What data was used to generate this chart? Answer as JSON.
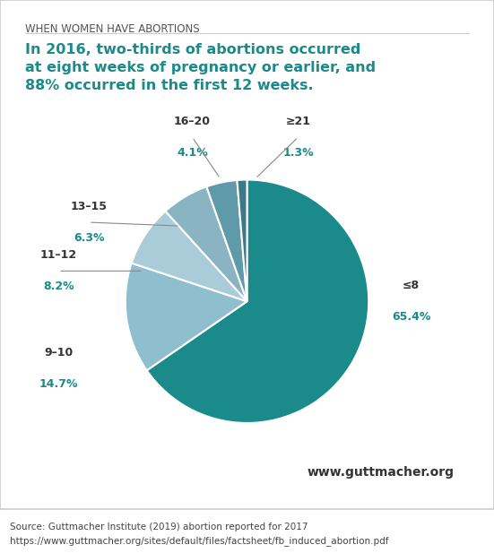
{
  "title_small": "WHEN WOMEN HAVE ABORTIONS",
  "title_main": "In 2016, two-thirds of abortions occurred\nat eight weeks of pregnancy or earlier, and\n88% occurred in the first 12 weeks.",
  "slices": [
    {
      "label": "≤8",
      "pct": 65.4,
      "color": "#1a8a8a"
    },
    {
      "label": "9–10",
      "pct": 14.7,
      "color": "#8fbfcf"
    },
    {
      "label": "11–12",
      "pct": 8.2,
      "color": "#aaccd8"
    },
    {
      "label": "13–15",
      "pct": 6.3,
      "color": "#8ab4c2"
    },
    {
      "label": "16–20",
      "pct": 4.1,
      "color": "#5e9aaa"
    },
    {
      "label": "≥21",
      "pct": 1.3,
      "color": "#3a7a8a"
    }
  ],
  "label_color": "#1a8a8a",
  "website": "www.guttmacher.org",
  "source_line1": "Source: Guttmacher Institute (2019) abortion reported for 2017",
  "source_line2": "https://www.guttmacher.org/sites/default/files/factsheet/fb_induced_abortion.pdf",
  "bg_color": "#ffffff",
  "border_color": "#cccccc",
  "title_small_color": "#555555",
  "title_main_color": "#1a8a8a"
}
